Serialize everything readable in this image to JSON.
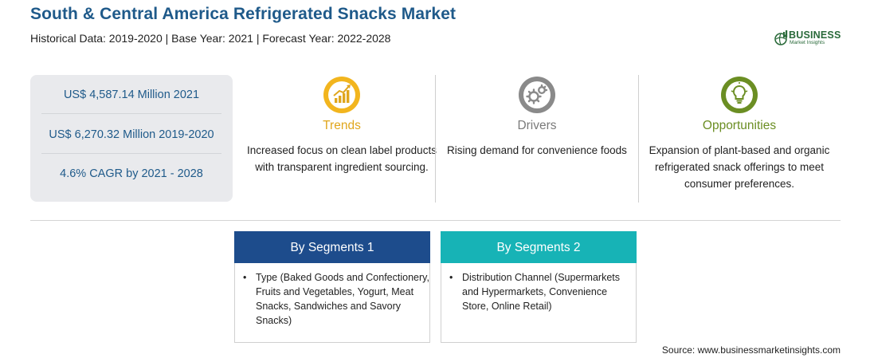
{
  "header": {
    "title": "South & Central America Refrigerated Snacks Market",
    "subtitle": "Historical Data: 2019-2020 | Base Year: 2021 | Forecast Year: 2022-2028"
  },
  "logo": {
    "word": "BUSINESS",
    "sub": "Market Insights"
  },
  "stats": [
    "US$ 4,587.14 Million 2021",
    "US$ 6,270.32 Million 2019-2020",
    "4.6% CAGR by 2021 - 2028"
  ],
  "columns": {
    "trends": {
      "heading": "Trends",
      "icon": "trend-chart-icon",
      "color": "#e0a61c",
      "text": "Increased focus on clean label products with transparent ingredient sourcing."
    },
    "drivers": {
      "heading": "Drivers",
      "icon": "gears-icon",
      "color": "#7a7a7a",
      "text": "Rising demand for convenience foods"
    },
    "opportunities": {
      "heading": "Opportunities",
      "icon": "lightbulb-icon",
      "color": "#6b8e23",
      "text": "Expansion of plant-based and organic refrigerated snack offerings to meet consumer preferences."
    }
  },
  "segments": [
    {
      "title": "By Segments 1",
      "color": "#1d4c8c",
      "bullet": "•",
      "text": "Type (Baked Goods and Confectionery, Fruits and Vegetables, Yogurt, Meat Snacks, Sandwiches and Savory Snacks)"
    },
    {
      "title": "By Segments 2",
      "color": "#17b3b6",
      "bullet": "•",
      "text": "Distribution Channel (Supermarkets and Hypermarkets, Convenience Store, Online Retail)"
    }
  ],
  "source": "Source: www.businessmarketinsights.com"
}
